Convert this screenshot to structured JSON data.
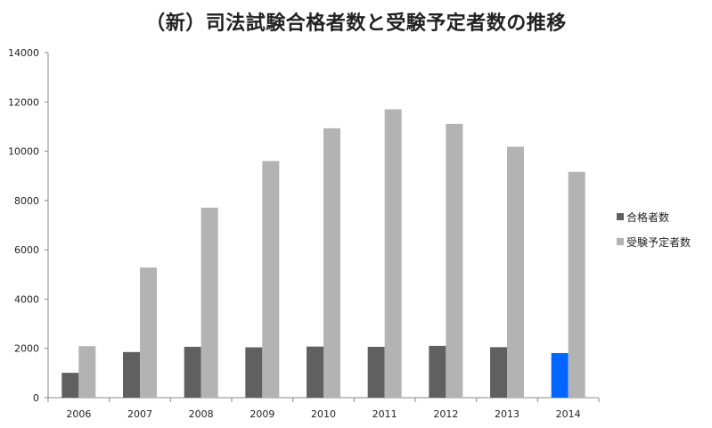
{
  "chart_data": {
    "type": "bar",
    "title": "（新）司法試験合格者数と受験予定者数の推移",
    "xlabel": "",
    "ylabel": "",
    "categories": [
      "2006",
      "2007",
      "2008",
      "2009",
      "2010",
      "2011",
      "2012",
      "2013",
      "2014"
    ],
    "series": [
      {
        "name": "合格者数",
        "values": [
          1009,
          1851,
          2065,
          2043,
          2074,
          2063,
          2102,
          2049,
          1810
        ],
        "color": "#606060",
        "highlight": {
          "index": 8,
          "color": "#0066ff"
        }
      },
      {
        "name": "受験予定者数",
        "values": [
          2091,
          5280,
          7710,
          9600,
          10930,
          11700,
          11110,
          10180,
          9160
        ],
        "color": "#b3b3b3"
      }
    ],
    "ylim": [
      0,
      14000
    ],
    "yticks": [
      0,
      2000,
      4000,
      6000,
      8000,
      10000,
      12000,
      14000
    ],
    "grid": false,
    "legend": "right"
  }
}
